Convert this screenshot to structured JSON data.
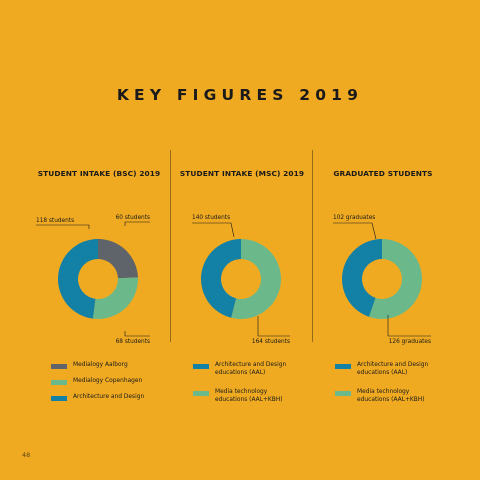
{
  "page": {
    "title": "KEY FIGURES 2019",
    "page_number": "48"
  },
  "colors": {
    "background": "#EFAA22",
    "medialogy_aalborg": "#5E6469",
    "medialogy_copenhagen": "#6BB98A",
    "architecture_design": "#1380A6",
    "media_technology": "#6BB98A"
  },
  "chart_data": [
    {
      "type": "pie",
      "style": "donut",
      "title": "STUDENT INTAKE (BSC) 2019",
      "categories": [
        "Medialogy Aalborg",
        "Medialogy Copenhagen",
        "Architecture and Design"
      ],
      "values": [
        60,
        68,
        118
      ],
      "data_labels": [
        "60 students",
        "68 students",
        "118 students"
      ],
      "colors": [
        "#5E6469",
        "#6BB98A",
        "#1380A6"
      ],
      "legend": [
        {
          "label": "Medialogy Aalborg",
          "color": "#5E6469"
        },
        {
          "label": "Medialogy Copenhagen",
          "color": "#6BB98A"
        },
        {
          "label": "Architecture and Design",
          "color": "#1380A6"
        }
      ]
    },
    {
      "type": "pie",
      "style": "donut",
      "title": "STUDENT INTAKE (MSC) 2019",
      "categories": [
        "Media technology educations (AAL+KBH)",
        "Architecture and Design educations (AAL)"
      ],
      "values": [
        164,
        140
      ],
      "data_labels": [
        "164 students",
        "140 students"
      ],
      "colors": [
        "#6BB98A",
        "#1380A6"
      ],
      "legend": [
        {
          "label": "Architecture and Design\neducations (AAL)",
          "color": "#1380A6"
        },
        {
          "label": "Media technology\neducations (AAL+KBH)",
          "color": "#6BB98A"
        }
      ]
    },
    {
      "type": "pie",
      "style": "donut",
      "title": "GRADUATED STUDENTS",
      "categories": [
        "Media technology educations (AAL+KBH)",
        "Architecture and Design educations (AAL)"
      ],
      "values": [
        126,
        102
      ],
      "data_labels": [
        "126 graduates",
        "102 graduates"
      ],
      "colors": [
        "#6BB98A",
        "#1380A6"
      ],
      "legend": [
        {
          "label": "Architecture and Design\neducations (AAL)",
          "color": "#1380A6"
        },
        {
          "label": "Media technology\neducations (AAL+KBH)",
          "color": "#6BB98A"
        }
      ]
    }
  ]
}
